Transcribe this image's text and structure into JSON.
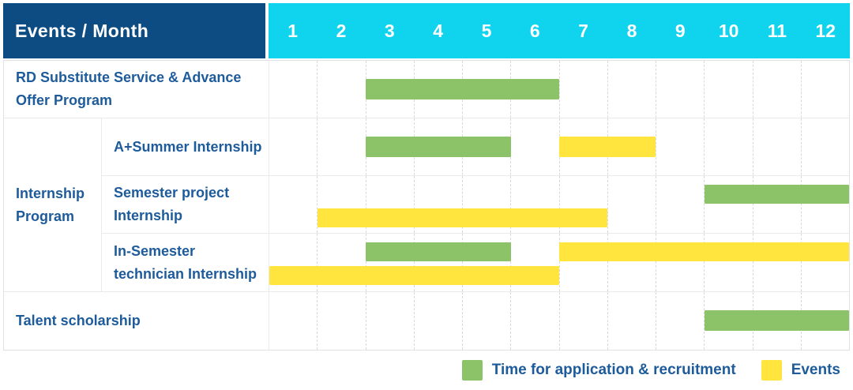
{
  "colors": {
    "navy": "#0d4c82",
    "cyan": "#10d3ee",
    "green": "#8cc368",
    "yellow": "#ffe53e",
    "label_blue": "#1d5b9b"
  },
  "header": {
    "title": "Events / Month",
    "months": [
      "1",
      "2",
      "3",
      "4",
      "5",
      "6",
      "7",
      "8",
      "9",
      "10",
      "11",
      "12"
    ]
  },
  "group_label": "Internship Program",
  "rows": [
    {
      "id": "rd-substitute",
      "label": "RD Substitute Service & Advance Offer Program",
      "lanes": 1,
      "bars": [
        {
          "kind": "recruitment",
          "start": 3,
          "end": 6,
          "lane": 0
        }
      ]
    },
    {
      "id": "a-summer",
      "group": "internship-program",
      "label": "A+Summer Internship",
      "lanes": 1,
      "bars": [
        {
          "kind": "recruitment",
          "start": 3,
          "end": 5,
          "lane": 0
        },
        {
          "kind": "events",
          "start": 7,
          "end": 8,
          "lane": 0
        }
      ]
    },
    {
      "id": "semester-project",
      "group": "internship-program",
      "label": "Semester project Internship",
      "lanes": 2,
      "bars": [
        {
          "kind": "recruitment",
          "start": 10,
          "end": 12,
          "lane": 0
        },
        {
          "kind": "events",
          "start": 2,
          "end": 7,
          "lane": 1
        }
      ]
    },
    {
      "id": "in-semester",
      "group": "internship-program",
      "label": "In-Semester technician Internship",
      "lanes": 2,
      "bars": [
        {
          "kind": "recruitment",
          "start": 3,
          "end": 5,
          "lane": 0
        },
        {
          "kind": "events",
          "start": 7,
          "end": 12,
          "lane": 0
        },
        {
          "kind": "events",
          "start": 1,
          "end": 6,
          "lane": 1
        }
      ]
    },
    {
      "id": "talent-scholarship",
      "label": "Talent scholarship",
      "lanes": 1,
      "bars": [
        {
          "kind": "recruitment",
          "start": 10,
          "end": 12,
          "lane": 0
        }
      ]
    }
  ],
  "legend": {
    "items": [
      {
        "kind": "recruitment",
        "label": "Time for application & recruitment"
      },
      {
        "kind": "events",
        "label": "Events"
      }
    ]
  },
  "chart_data": {
    "type": "bar",
    "subtype": "gantt-schedule",
    "title": "Events / Month",
    "x_axis": {
      "label": "Month",
      "ticks": [
        1,
        2,
        3,
        4,
        5,
        6,
        7,
        8,
        9,
        10,
        11,
        12
      ],
      "range": [
        1,
        12
      ]
    },
    "grid": true,
    "legend_position": "bottom-right",
    "categories": [
      "RD Substitute Service & Advance Offer Program",
      "Internship Program / A+Summer Internship",
      "Internship Program / Semester project Internship",
      "Internship Program / In-Semester technician Internship",
      "Talent scholarship"
    ],
    "series": [
      {
        "name": "Time for application & recruitment",
        "color": "#8cc368",
        "spans": [
          {
            "row": "RD Substitute Service & Advance Offer Program",
            "start_month": 3,
            "end_month": 6
          },
          {
            "row": "Internship Program / A+Summer Internship",
            "start_month": 3,
            "end_month": 5
          },
          {
            "row": "Internship Program / Semester project Internship",
            "start_month": 10,
            "end_month": 12
          },
          {
            "row": "Internship Program / In-Semester technician Internship",
            "start_month": 3,
            "end_month": 5
          },
          {
            "row": "Talent scholarship",
            "start_month": 10,
            "end_month": 12
          }
        ]
      },
      {
        "name": "Events",
        "color": "#ffe53e",
        "spans": [
          {
            "row": "Internship Program / A+Summer Internship",
            "start_month": 7,
            "end_month": 8
          },
          {
            "row": "Internship Program / Semester project Internship",
            "start_month": 2,
            "end_month": 7
          },
          {
            "row": "Internship Program / In-Semester technician Internship",
            "start_month": 7,
            "end_month": 12
          },
          {
            "row": "Internship Program / In-Semester technician Internship",
            "start_month": 1,
            "end_month": 6
          }
        ]
      }
    ]
  }
}
